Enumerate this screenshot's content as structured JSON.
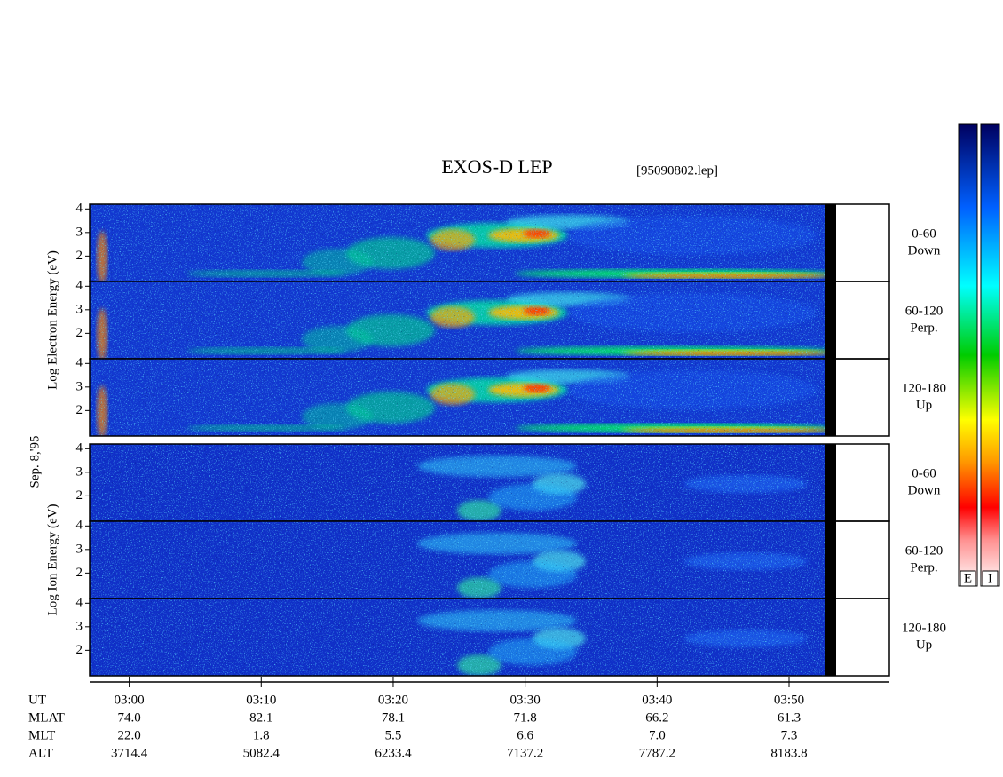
{
  "chart_data": {
    "type": "spectrogram",
    "title": "EXOS-D LEP",
    "subtitle": "[95090802.lep]",
    "date_label": "Sep. 8,'95",
    "groups": [
      {
        "label": "Log Electron Energy (eV)",
        "panels": [
          {
            "pitch": "0-60",
            "direction": "Down"
          },
          {
            "pitch": "60-120",
            "direction": "Perp."
          },
          {
            "pitch": "120-180",
            "direction": "Up"
          }
        ]
      },
      {
        "label": "Log Ion Energy (eV)",
        "panels": [
          {
            "pitch": "0-60",
            "direction": "Down"
          },
          {
            "pitch": "60-120",
            "direction": "Perp."
          },
          {
            "pitch": "120-180",
            "direction": "Up"
          }
        ]
      }
    ],
    "ylim": [
      0.92,
      4.2
    ],
    "yticks": [
      2,
      3,
      4
    ],
    "xlim": [
      177,
      237.6
    ],
    "xticks": [
      {
        "value": 180,
        "label": "03:00"
      },
      {
        "value": 190,
        "label": "03:10"
      },
      {
        "value": 200,
        "label": "03:20"
      },
      {
        "value": 210,
        "label": "03:30"
      },
      {
        "value": 220,
        "label": "03:40"
      },
      {
        "value": 230,
        "label": "03:50"
      }
    ],
    "x_label": "UT",
    "orbit": [
      {
        "label": "MLAT",
        "values": [
          "74.0",
          "82.1",
          "78.1",
          "71.8",
          "66.2",
          "61.3"
        ]
      },
      {
        "label": "MLT",
        "values": [
          "22.0",
          "1.8",
          "5.5",
          "6.6",
          "7.0",
          "7.3"
        ]
      },
      {
        "label": "ALT",
        "values": [
          "3714.4",
          "5082.4",
          "6233.4",
          "7137.2",
          "7787.2",
          "8183.8"
        ]
      }
    ],
    "colorbar_labels": [
      "E",
      "I"
    ]
  }
}
